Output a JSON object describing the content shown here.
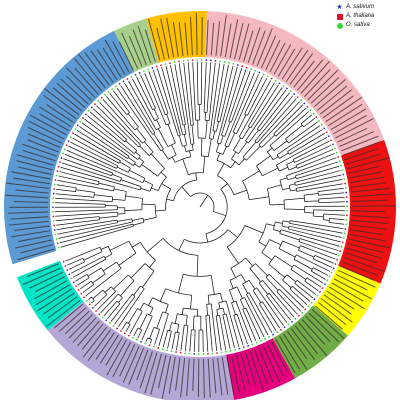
{
  "legend": [
    {
      "label": "A. sativum",
      "marker": "star",
      "color": "#1f2fd6"
    },
    {
      "label": "A. thaliana",
      "marker": "square",
      "color": "#e0142a"
    },
    {
      "label": "O. sativa",
      "marker": "circle",
      "color": "#33dd33"
    }
  ],
  "clades": [
    {
      "id": "clade-blue",
      "color": "#5b9ad5",
      "start": 163,
      "end": 244
    },
    {
      "id": "clade-light-green",
      "color": "#a8d08d",
      "start": 244,
      "end": 254
    },
    {
      "id": "clade-gold",
      "color": "#ffc000",
      "start": 254,
      "end": 272
    },
    {
      "id": "clade-pink",
      "color": "#f4b9c0",
      "start": 272,
      "end": 340
    },
    {
      "id": "clade-red",
      "color": "#ee1111",
      "start": 340,
      "end": 383
    },
    {
      "id": "clade-yellow",
      "color": "#ffff00",
      "start": 383,
      "end": 401
    },
    {
      "id": "clade-green",
      "color": "#70ad47",
      "start": 401,
      "end": 421
    },
    {
      "id": "clade-magenta",
      "color": "#e6007e",
      "start": 421,
      "end": 440
    },
    {
      "id": "clade-lavender",
      "color": "#b4a7d6",
      "start": 440,
      "end": 501
    },
    {
      "id": "clade-cyan",
      "color": "#00e5c8",
      "start": 501,
      "end": 519
    }
  ],
  "species_colors": {
    "star": "#1f2fd6",
    "square": "#e0142a",
    "circle": "#33dd33"
  }
}
